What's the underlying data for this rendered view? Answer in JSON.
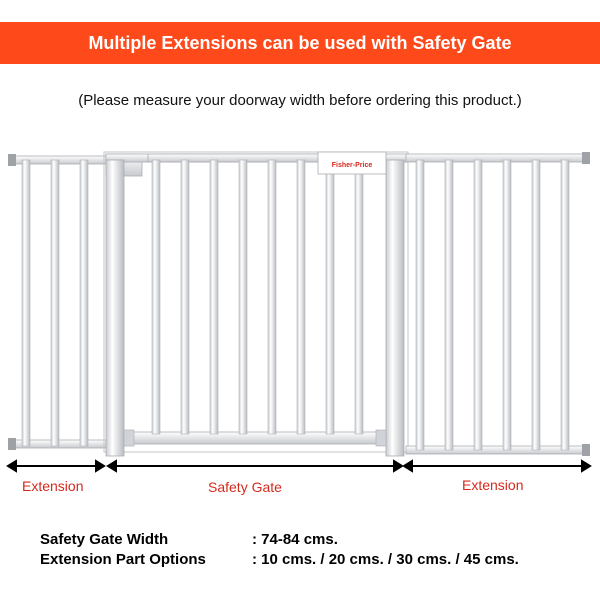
{
  "banner": {
    "title": "Multiple Extensions can be used with Safety Gate",
    "color": "#fe4a1b"
  },
  "subtitle": "(Please measure your doorway width before ordering this product.)",
  "gate_logo_text": "Fisher-Price",
  "labels": {
    "extension_left": "Extension",
    "safety_gate": "Safety Gate",
    "extension_right": "Extension"
  },
  "specs": [
    {
      "label": "Safety Gate Width",
      "value": ": 74-84 cms."
    },
    {
      "label": "Extension Part Options",
      "value": ": 10 cms. / 20 cms. / 30 cms. / 45 cms."
    }
  ],
  "label_color": "#d42b1e"
}
